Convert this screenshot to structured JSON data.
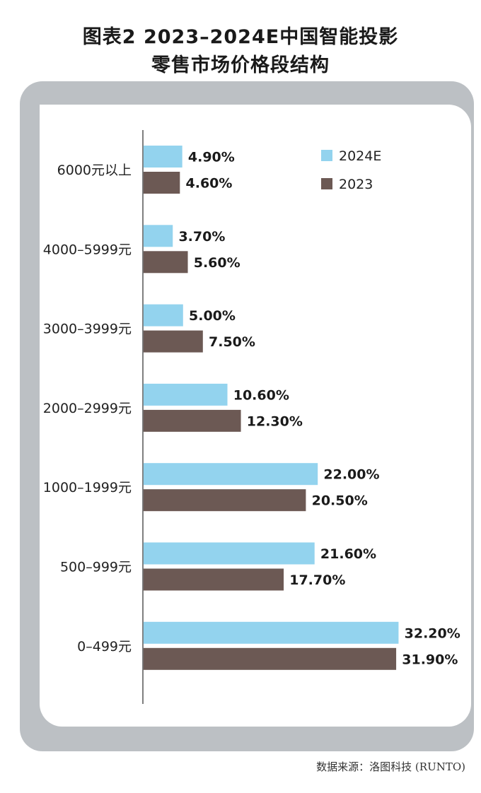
{
  "title_line1": "图表2  2023–2024E中国智能投影",
  "title_line2": "零售市场价格段结构",
  "source": "数据来源：洛图科技 (RUNTO)",
  "colors": {
    "s2024": "#93d3ee",
    "s2023": "#6c5954",
    "axis": "#555555",
    "frame": "#bcc0c4"
  },
  "chart_data": {
    "type": "bar",
    "orientation": "horizontal",
    "categories": [
      "6000元以上",
      "4000–5999元",
      "3000–3999元",
      "2000–2999元",
      "1000–1999元",
      "500–999元",
      "0–499元"
    ],
    "series": [
      {
        "name": "2024E",
        "values": [
          4.9,
          3.7,
          5.0,
          10.6,
          22.0,
          21.6,
          32.2
        ],
        "labels": [
          "4.90%",
          "3.70%",
          "5.00%",
          "10.60%",
          "22.00%",
          "21.60%",
          "32.20%"
        ]
      },
      {
        "name": "2023",
        "values": [
          4.6,
          5.6,
          7.5,
          12.3,
          20.5,
          17.7,
          31.9
        ],
        "labels": [
          "4.60%",
          "5.60%",
          "7.50%",
          "12.30%",
          "20.50%",
          "17.70%",
          "31.90%"
        ]
      }
    ],
    "legend": [
      "2024E",
      "2023"
    ],
    "legend_position": "top-right",
    "xlim": [
      0,
      35
    ],
    "title": "",
    "xlabel": "",
    "ylabel": ""
  }
}
